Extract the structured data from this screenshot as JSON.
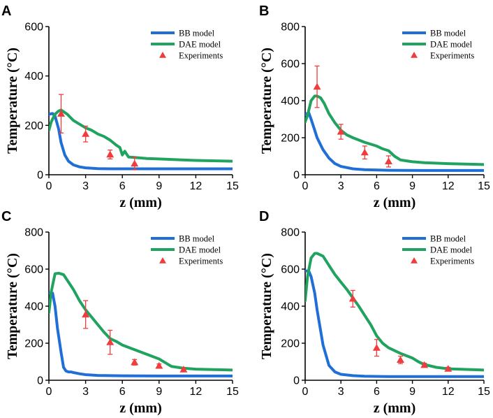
{
  "colors": {
    "bb": "#1f6fd6",
    "dae": "#21a360",
    "exp": "#f03c3c",
    "axis": "#000000"
  },
  "legend_labels": {
    "bb": "BB model",
    "dae": "DAE model",
    "exp": "Experiments"
  },
  "chart_data": [
    {
      "type": "line",
      "panel": "A",
      "xlabel": "z (mm)",
      "ylabel": "Temperature (°C)",
      "xlim": [
        0,
        15
      ],
      "ylim": [
        0,
        600
      ],
      "xticks": [
        0,
        3,
        6,
        9,
        12,
        15
      ],
      "yticks": [
        0,
        200,
        400,
        600
      ],
      "legend_position": "top-right",
      "series": [
        {
          "name": "BB model",
          "x": [
            0,
            0.3,
            0.5,
            0.8,
            1.0,
            1.3,
            1.6,
            2.0,
            2.5,
            3.0,
            4.0,
            5.0,
            7.0,
            10.0,
            15.0
          ],
          "y": [
            245,
            248,
            238,
            185,
            130,
            80,
            55,
            40,
            32,
            28,
            25,
            24,
            24,
            24,
            24
          ]
        },
        {
          "name": "DAE model",
          "x": [
            0,
            0.2,
            0.5,
            0.8,
            1.0,
            1.5,
            2.0,
            2.5,
            3.0,
            3.5,
            4.0,
            4.5,
            5.0,
            5.5,
            5.8,
            6.0,
            6.2,
            6.5,
            7.0,
            8.0,
            9.0,
            10.0,
            12.0,
            15.0
          ],
          "y": [
            180,
            215,
            245,
            258,
            262,
            245,
            220,
            205,
            190,
            180,
            165,
            155,
            140,
            120,
            110,
            80,
            95,
            72,
            70,
            66,
            64,
            62,
            58,
            55
          ]
        },
        {
          "name": "Experiments",
          "x": [
            1,
            3,
            5,
            7
          ],
          "y": [
            247,
            165,
            82,
            45
          ],
          "err": [
            78,
            32,
            18,
            25
          ]
        }
      ]
    },
    {
      "type": "line",
      "panel": "B",
      "xlabel": "z (mm)",
      "ylabel": "Temperature (°C)",
      "xlim": [
        0,
        15
      ],
      "ylim": [
        0,
        800
      ],
      "xticks": [
        0,
        3,
        6,
        9,
        12,
        15
      ],
      "yticks": [
        0,
        200,
        400,
        600,
        800
      ],
      "legend_position": "top-right",
      "series": [
        {
          "name": "BB model",
          "x": [
            0,
            0.3,
            0.5,
            0.8,
            1.0,
            1.5,
            2.0,
            2.5,
            3.0,
            4.0,
            5.0,
            7.0,
            10.0,
            15.0
          ],
          "y": [
            325,
            335,
            300,
            240,
            200,
            135,
            90,
            60,
            45,
            32,
            27,
            24,
            23,
            23
          ]
        },
        {
          "name": "DAE model",
          "x": [
            0,
            0.2,
            0.5,
            0.8,
            1.0,
            1.3,
            1.6,
            2.0,
            2.5,
            3.0,
            3.5,
            4.0,
            5.0,
            6.0,
            6.5,
            7.0,
            7.5,
            8.0,
            8.5,
            9.0,
            10.0,
            12.0,
            15.0
          ],
          "y": [
            285,
            320,
            400,
            425,
            425,
            415,
            385,
            330,
            280,
            240,
            215,
            200,
            175,
            155,
            140,
            130,
            100,
            80,
            75,
            70,
            65,
            60,
            55
          ]
        },
        {
          "name": "Experiments",
          "x": [
            1,
            3,
            5,
            7
          ],
          "y": [
            475,
            232,
            120,
            72
          ],
          "err": [
            112,
            40,
            35,
            30
          ]
        }
      ]
    },
    {
      "type": "line",
      "panel": "C",
      "xlabel": "z (mm)",
      "ylabel": "Temperature (°C)",
      "xlim": [
        0,
        15
      ],
      "ylim": [
        0,
        800
      ],
      "xticks": [
        0,
        3,
        6,
        9,
        12,
        15
      ],
      "yticks": [
        0,
        200,
        400,
        600,
        800
      ],
      "legend_position": "top-right",
      "series": [
        {
          "name": "BB model",
          "x": [
            0,
            0.3,
            0.5,
            0.7,
            1.0,
            1.2,
            1.4,
            1.6,
            1.8,
            2.0,
            2.5,
            3.0,
            4.0,
            6.0,
            9.0,
            15.0
          ],
          "y": [
            470,
            470,
            400,
            280,
            150,
            70,
            50,
            45,
            45,
            42,
            35,
            30,
            26,
            24,
            23,
            23
          ]
        },
        {
          "name": "DAE model",
          "x": [
            0,
            0.2,
            0.5,
            0.8,
            1.2,
            1.5,
            2.0,
            2.5,
            3.0,
            3.5,
            4.0,
            4.5,
            5.0,
            5.5,
            6.0,
            7.0,
            8.0,
            9.0,
            9.5,
            10.0,
            11.0,
            12.0,
            15.0
          ],
          "y": [
            365,
            480,
            575,
            578,
            570,
            540,
            490,
            430,
            380,
            340,
            300,
            260,
            225,
            210,
            190,
            165,
            140,
            115,
            95,
            75,
            65,
            60,
            55
          ]
        },
        {
          "name": "Experiments",
          "x": [
            3,
            5,
            7,
            9,
            11
          ],
          "y": [
            355,
            205,
            97,
            78,
            58
          ],
          "err": [
            75,
            65,
            15,
            10,
            8
          ]
        }
      ]
    },
    {
      "type": "line",
      "panel": "D",
      "xlabel": "z (mm)",
      "ylabel": "Temperature (°C)",
      "xlim": [
        0,
        15
      ],
      "ylim": [
        0,
        800
      ],
      "xticks": [
        0,
        3,
        6,
        9,
        12,
        15
      ],
      "yticks": [
        0,
        200,
        400,
        600,
        800
      ],
      "legend_position": "top-right",
      "series": [
        {
          "name": "BB model",
          "x": [
            0,
            0.3,
            0.5,
            0.8,
            1.0,
            1.5,
            2.0,
            2.5,
            3.0,
            4.0,
            5.0,
            7.0,
            10.0,
            15.0
          ],
          "y": [
            590,
            590,
            560,
            470,
            380,
            190,
            80,
            45,
            32,
            25,
            22,
            20,
            20,
            20
          ]
        },
        {
          "name": "DAE model",
          "x": [
            0,
            0.2,
            0.5,
            0.8,
            1.0,
            1.5,
            2.0,
            2.5,
            3.0,
            3.5,
            4.0,
            4.5,
            5.0,
            5.5,
            6.0,
            6.5,
            7.0,
            8.0,
            9.0,
            9.5,
            10.0,
            11.0,
            12.0,
            15.0
          ],
          "y": [
            430,
            560,
            660,
            685,
            685,
            670,
            620,
            570,
            530,
            490,
            445,
            400,
            350,
            300,
            240,
            200,
            175,
            145,
            120,
            100,
            85,
            70,
            62,
            55
          ]
        },
        {
          "name": "Experiments",
          "x": [
            4,
            6,
            8,
            10,
            12
          ],
          "y": [
            440,
            175,
            110,
            82,
            62
          ],
          "err": [
            45,
            45,
            20,
            10,
            8
          ]
        }
      ]
    }
  ]
}
